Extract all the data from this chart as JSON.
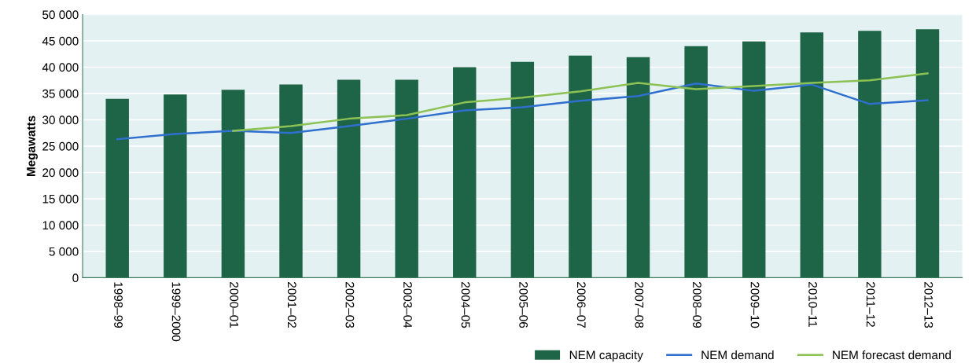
{
  "chart_data": {
    "type": "bar",
    "ylabel": "Megawatts",
    "categories": [
      "1998–99",
      "1999–2000",
      "2000–01",
      "2001–02",
      "2002–03",
      "2003–04",
      "2004–05",
      "2005–06",
      "2006–07",
      "2007–08",
      "2008–09",
      "2009–10",
      "2010–11",
      "2011–12",
      "2012–13"
    ],
    "series": [
      {
        "name": "NEM capacity",
        "color": "#1e6446",
        "values": [
          34000,
          34800,
          35700,
          36700,
          37600,
          37600,
          40000,
          41000,
          42200,
          41900,
          44000,
          44900,
          46600,
          46900,
          47200
        ]
      },
      {
        "name": "NEM demand",
        "type": "line",
        "color": "#2f6fce",
        "values": [
          26300,
          27300,
          27900,
          27500,
          28800,
          30200,
          31800,
          32400,
          33600,
          34500,
          36900,
          35500,
          36700,
          33000,
          33700
        ]
      },
      {
        "name": "NEM forecast demand",
        "type": "line",
        "color": "#8cc153",
        "values": [
          null,
          null,
          27900,
          28800,
          30200,
          30900,
          33300,
          34200,
          35400,
          37000,
          35800,
          36400,
          37000,
          37500,
          38800
        ]
      }
    ],
    "ylim": [
      0,
      50000
    ],
    "yticks": [
      {
        "value": 0,
        "label": "0"
      },
      {
        "value": 5000,
        "label": "5 000"
      },
      {
        "value": 10000,
        "label": "10 000"
      },
      {
        "value": 15000,
        "label": "15 000"
      },
      {
        "value": 20000,
        "label": "20 000"
      },
      {
        "value": 25000,
        "label": "25 000"
      },
      {
        "value": 30000,
        "label": "30 000"
      },
      {
        "value": 35000,
        "label": "35 000"
      },
      {
        "value": 40000,
        "label": "40 000"
      },
      {
        "value": 45000,
        "label": "45 000"
      },
      {
        "value": 50000,
        "label": "50 000"
      }
    ],
    "grid": "y",
    "legend": "bottom right"
  }
}
